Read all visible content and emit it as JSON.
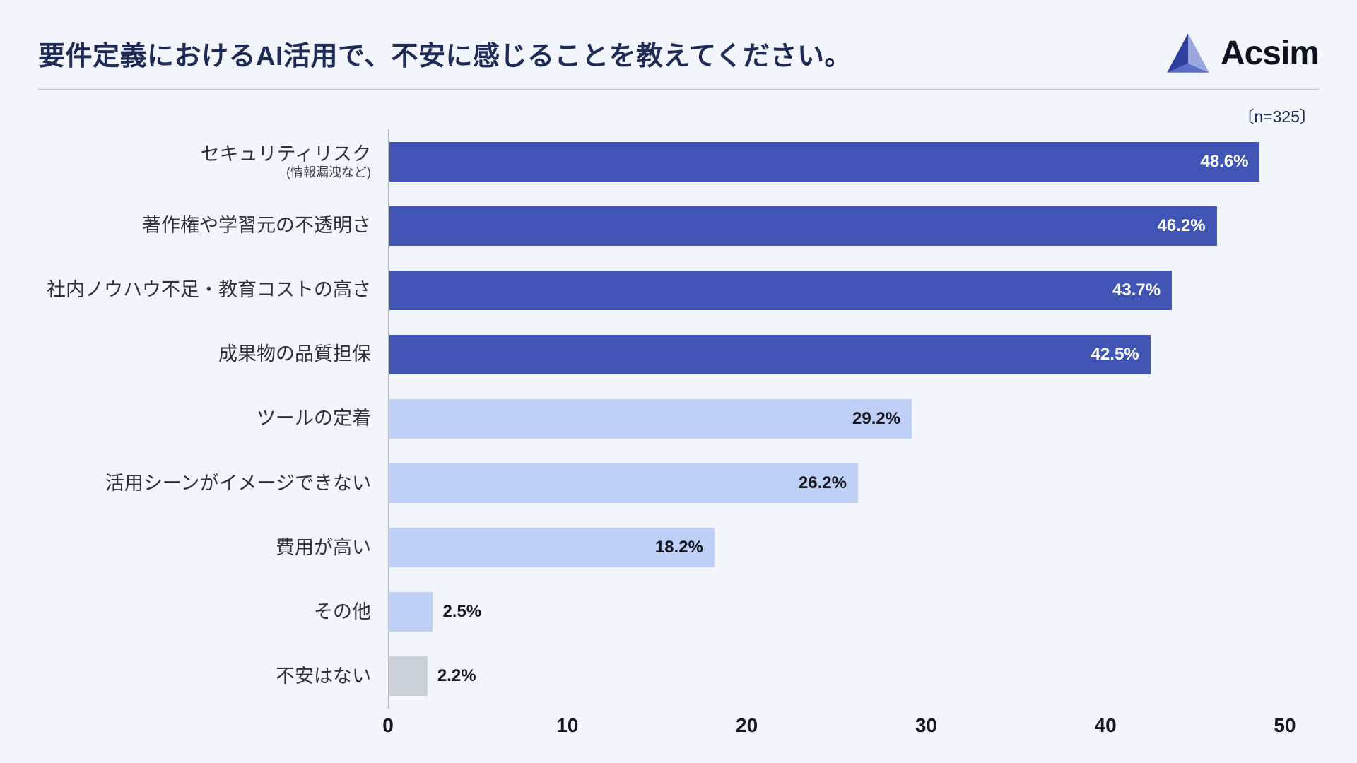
{
  "header": {
    "title": "要件定義におけるAI活用で、不安に感じることを教えてください。",
    "logo_text": "Acsim",
    "sample_size": "〔n=325〕"
  },
  "colors": {
    "background": "#f2f5fb",
    "bar_dark": "#4155b5",
    "bar_light": "#bfd0f7",
    "bar_gray": "#ccd0d9",
    "label_on_dark": "#ffffff",
    "label_on_light": "#14161f",
    "title_text": "#1d2b55",
    "axis_line": "#b4bac7"
  },
  "chart_data": {
    "type": "bar",
    "orientation": "horizontal",
    "title": "要件定義におけるAI活用で、不安に感じることを教えてください。",
    "sample_note": "〔n=325〕",
    "xlim": [
      0,
      50
    ],
    "x_ticks": [
      "0",
      "10",
      "20",
      "30",
      "40",
      "50"
    ],
    "grid": false,
    "legend": false,
    "bars": [
      {
        "label": "セキュリティリスク",
        "sublabel": "(情報漏洩など)",
        "value": 48.6,
        "display": "48.6%",
        "style": "dark"
      },
      {
        "label": "著作権や学習元の不透明さ",
        "sublabel": "",
        "value": 46.2,
        "display": "46.2%",
        "style": "dark"
      },
      {
        "label": "社内ノウハウ不足・教育コストの高さ",
        "sublabel": "",
        "value": 43.7,
        "display": "43.7%",
        "style": "dark"
      },
      {
        "label": "成果物の品質担保",
        "sublabel": "",
        "value": 42.5,
        "display": "42.5%",
        "style": "dark"
      },
      {
        "label": "ツールの定着",
        "sublabel": "",
        "value": 29.2,
        "display": "29.2%",
        "style": "light"
      },
      {
        "label": "活用シーンがイメージできない",
        "sublabel": "",
        "value": 26.2,
        "display": "26.2%",
        "style": "light"
      },
      {
        "label": "費用が高い",
        "sublabel": "",
        "value": 18.2,
        "display": "18.2%",
        "style": "light"
      },
      {
        "label": "その他",
        "sublabel": "",
        "value": 2.5,
        "display": "2.5%",
        "style": "light"
      },
      {
        "label": "不安はない",
        "sublabel": "",
        "value": 2.2,
        "display": "2.2%",
        "style": "gray"
      }
    ]
  }
}
